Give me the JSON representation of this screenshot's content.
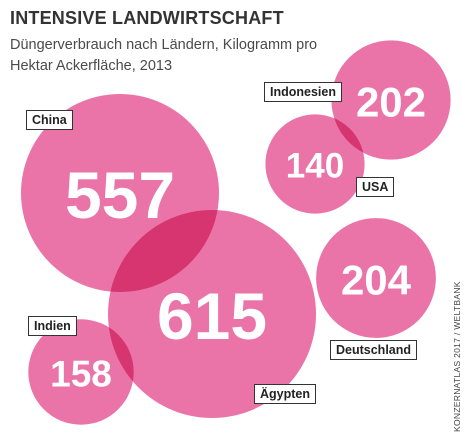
{
  "header": {
    "title": "INTENSIVE LANDWIRTSCHAFT",
    "subtitle": "Düngerverbrauch nach Ländern, Kilogramm pro Hektar Ackerfläche, 2013"
  },
  "source": "KONZERNATLAS 2017 / WELTBANK",
  "colors": {
    "bubble": "#e8659e",
    "value_text": "#ffffff"
  },
  "chart_data": {
    "type": "bubble",
    "title": "INTENSIVE LANDWIRTSCHAFT",
    "subtitle": "Düngerverbrauch nach Ländern, Kilogramm pro Hektar Ackerfläche, 2013",
    "unit": "Kilogramm pro Hektar Ackerfläche",
    "year": 2013,
    "categories": [
      "China",
      "Ägypten",
      "Indonesien",
      "USA",
      "Deutschland",
      "Indien"
    ],
    "values": [
      557,
      615,
      202,
      140,
      204,
      158
    ]
  }
}
